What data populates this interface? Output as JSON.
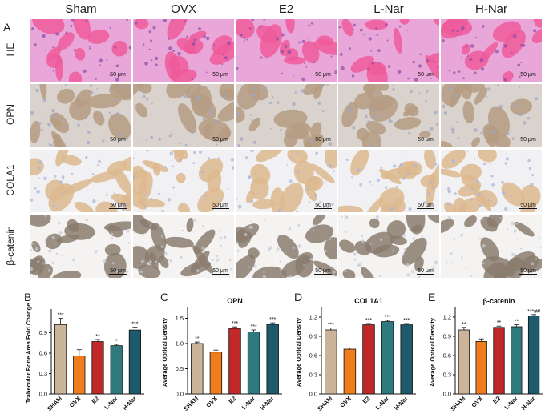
{
  "columns": [
    "Sham",
    "OVX",
    "E2",
    "L-Nar",
    "H-Nar"
  ],
  "rows": [
    "HE",
    "OPN",
    "COLA1",
    "β-catenin"
  ],
  "scale_label": "50 μm",
  "panel_letters": {
    "A": "A",
    "B": "B",
    "C": "C",
    "D": "D",
    "E": "E"
  },
  "stain_colors": {
    "HE": {
      "bg": "#e8a7d8",
      "feature": "#ee5a9a",
      "cells": "#8a4aa8"
    },
    "OPN": {
      "bg": "#d9d2cd",
      "feature": "#b59c82",
      "cells": "#9da5c9"
    },
    "COLA1": {
      "bg": "#f1f1f4",
      "feature": "#ddb98e",
      "cells": "#aab4dd"
    },
    "β-catenin": {
      "bg": "#f4f3f2",
      "feature": "#8a7d6f",
      "cells": "#c6cad8"
    }
  },
  "bar_colors": [
    "#cbb59a",
    "#f07d1d",
    "#c0282a",
    "#2f7a7f",
    "#1d5a6b"
  ],
  "chart_data": [
    {
      "type": "bar",
      "panel": "B",
      "title": "",
      "ylabel": "Trabecular Bone Area Fold Change",
      "categories": [
        "SHAM",
        "OVX",
        "E2",
        "L-Nar",
        "H-Nar"
      ],
      "values": [
        1.02,
        0.56,
        0.77,
        0.71,
        0.94
      ],
      "errors": [
        0.09,
        0.09,
        0.03,
        0.02,
        0.04
      ],
      "annotations": [
        "***",
        "",
        "**",
        "*",
        "***"
      ],
      "ylim": [
        0,
        1.2
      ],
      "yticks": [
        "0.0",
        "0.3",
        "0.6",
        "0.9"
      ],
      "ytick_values": [
        0,
        0.3,
        0.6,
        0.9
      ]
    },
    {
      "type": "bar",
      "panel": "C",
      "title": "OPN",
      "ylabel": "Average Optical Density",
      "categories": [
        "SHAM",
        "OVX",
        "E2",
        "L-Nar",
        "H-Nar"
      ],
      "values": [
        1.0,
        0.83,
        1.3,
        1.23,
        1.38
      ],
      "errors": [
        0.03,
        0.04,
        0.03,
        0.04,
        0.03
      ],
      "annotations": [
        "**",
        "",
        "***",
        "***",
        "***"
      ],
      "ylim": [
        0,
        1.65
      ],
      "yticks": [
        "0.0",
        "0.5",
        "1.0",
        "1.5"
      ],
      "ytick_values": [
        0,
        0.5,
        1.0,
        1.5
      ]
    },
    {
      "type": "bar",
      "panel": "D",
      "title": "COL1A1",
      "ylabel": "Average Optical Density",
      "categories": [
        "SHAM",
        "OVX",
        "E2",
        "L-Nar",
        "H-Nar"
      ],
      "values": [
        1.0,
        0.7,
        1.08,
        1.13,
        1.08
      ],
      "errors": [
        0.03,
        0.02,
        0.02,
        0.02,
        0.02
      ],
      "annotations": [
        "***",
        "",
        "***",
        "***",
        "***"
      ],
      "ylim": [
        0,
        1.3
      ],
      "yticks": [
        "0.0",
        "0.3",
        "0.6",
        "0.9",
        "1.2"
      ],
      "ytick_values": [
        0,
        0.3,
        0.6,
        0.9,
        1.2
      ]
    },
    {
      "type": "bar",
      "panel": "E",
      "title": "β-catenin",
      "ylabel": "Average Optical Density",
      "categories": [
        "SHAM",
        "OVX",
        "E2",
        "L-Nar",
        "H-Nar"
      ],
      "values": [
        1.0,
        0.82,
        1.04,
        1.05,
        1.22
      ],
      "errors": [
        0.04,
        0.04,
        0.02,
        0.03,
        0.02
      ],
      "annotations": [
        "**",
        "",
        "**",
        "**",
        "***##"
      ],
      "ylim": [
        0,
        1.3
      ],
      "yticks": [
        "0.0",
        "0.3",
        "0.6",
        "0.9",
        "1.2"
      ],
      "ytick_values": [
        0,
        0.3,
        0.6,
        0.9,
        1.2
      ]
    }
  ]
}
